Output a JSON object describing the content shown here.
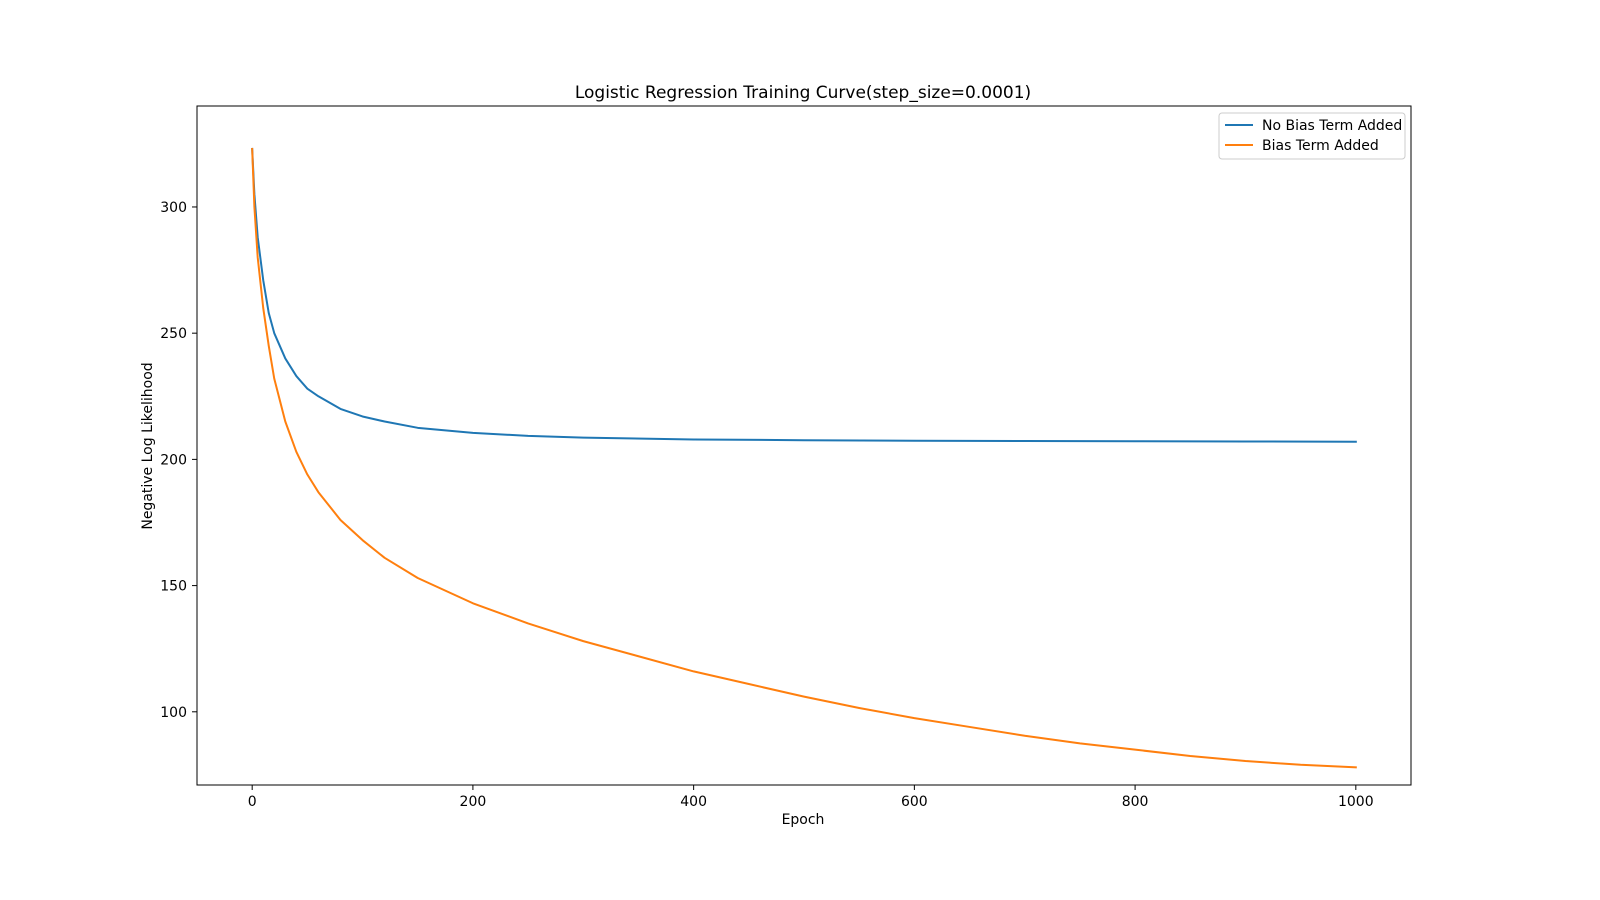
{
  "chart_data": {
    "type": "line",
    "title": "Logistic Regression Training Curve(step_size=0.0001)",
    "xlabel": "Epoch",
    "ylabel": "Negative Log Likelihood",
    "xlim": [
      -50,
      1050
    ],
    "ylim": [
      71,
      340
    ],
    "xticks": [
      0,
      200,
      400,
      600,
      800,
      1000
    ],
    "yticks": [
      100,
      150,
      200,
      250,
      300
    ],
    "grid": false,
    "legend_position": "top-right",
    "series": [
      {
        "name": "No Bias Term Added",
        "color": "#1f77b4",
        "points": [
          [
            0,
            323
          ],
          [
            2,
            305
          ],
          [
            5,
            288
          ],
          [
            10,
            271
          ],
          [
            15,
            258
          ],
          [
            20,
            250
          ],
          [
            30,
            240
          ],
          [
            40,
            233
          ],
          [
            50,
            228
          ],
          [
            60,
            225
          ],
          [
            80,
            220
          ],
          [
            100,
            217
          ],
          [
            120,
            215
          ],
          [
            150,
            212.5
          ],
          [
            200,
            210.5
          ],
          [
            250,
            209.3
          ],
          [
            300,
            208.6
          ],
          [
            400,
            207.9
          ],
          [
            500,
            207.6
          ],
          [
            600,
            207.4
          ],
          [
            700,
            207.3
          ],
          [
            800,
            207.2
          ],
          [
            900,
            207.1
          ],
          [
            1000,
            207
          ]
        ]
      },
      {
        "name": "Bias Term Added",
        "color": "#ff7f0e",
        "points": [
          [
            0,
            323
          ],
          [
            2,
            300
          ],
          [
            5,
            280
          ],
          [
            10,
            260
          ],
          [
            15,
            245
          ],
          [
            20,
            232
          ],
          [
            30,
            215
          ],
          [
            40,
            203
          ],
          [
            50,
            194
          ],
          [
            60,
            187
          ],
          [
            80,
            176
          ],
          [
            100,
            168
          ],
          [
            120,
            161
          ],
          [
            150,
            153
          ],
          [
            200,
            143
          ],
          [
            250,
            135
          ],
          [
            300,
            128
          ],
          [
            350,
            122
          ],
          [
            400,
            116
          ],
          [
            450,
            111
          ],
          [
            500,
            106
          ],
          [
            550,
            101.5
          ],
          [
            600,
            97.5
          ],
          [
            650,
            94
          ],
          [
            700,
            90.5
          ],
          [
            750,
            87.5
          ],
          [
            800,
            85
          ],
          [
            850,
            82.5
          ],
          [
            900,
            80.5
          ],
          [
            950,
            79
          ],
          [
            1000,
            78
          ]
        ]
      }
    ]
  }
}
